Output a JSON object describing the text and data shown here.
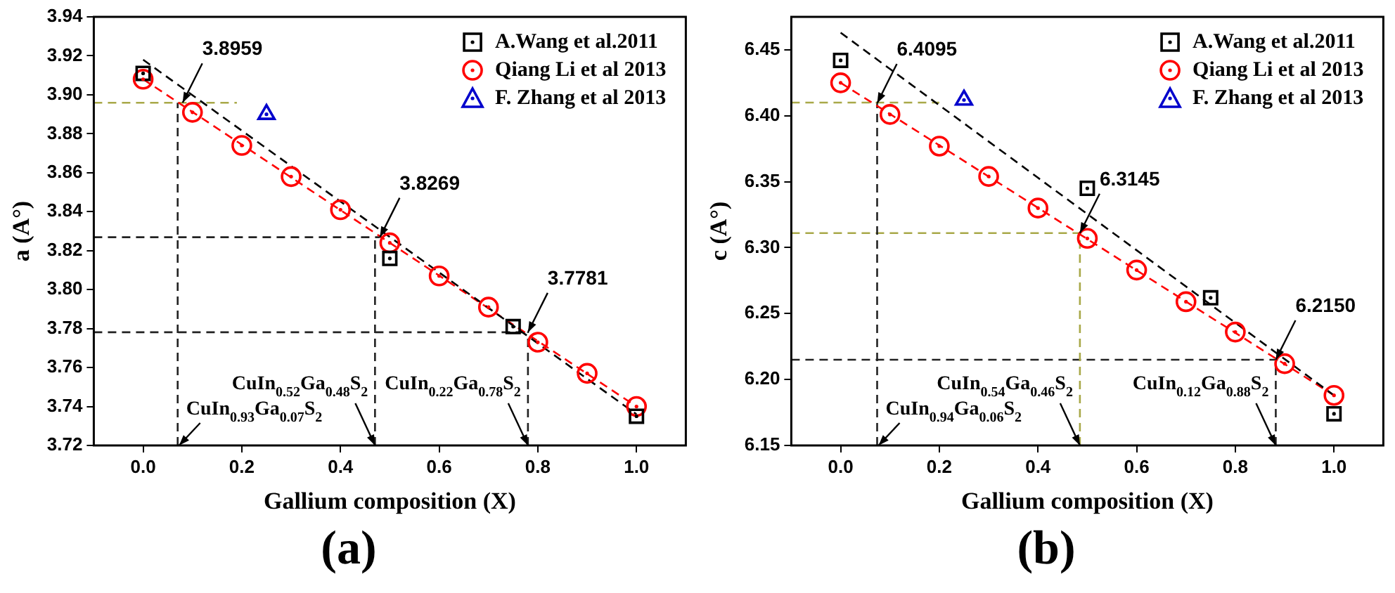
{
  "chart_data": [
    {
      "type": "scatter",
      "xlabel": "Gallium composition (X)",
      "ylabel": "a (A°)",
      "xlim": [
        -0.1,
        1.1
      ],
      "ylim": [
        3.72,
        3.94
      ],
      "xticks": [
        {
          "value": 0,
          "label": "0.0"
        },
        {
          "value": 0.2,
          "label": "0.2"
        },
        {
          "value": 0.4,
          "label": "0.4"
        },
        {
          "value": 0.6,
          "label": "0.6"
        },
        {
          "value": 0.8,
          "label": "0.8"
        },
        {
          "value": 1,
          "label": "1.0"
        }
      ],
      "yticks": [
        {
          "value": 3.72,
          "label": "3.72"
        },
        {
          "value": 3.74,
          "label": "3.74"
        },
        {
          "value": 3.76,
          "label": "3.76"
        },
        {
          "value": 3.78,
          "label": "3.78"
        },
        {
          "value": 3.8,
          "label": "3.80"
        },
        {
          "value": 3.82,
          "label": "3.82"
        },
        {
          "value": 3.84,
          "label": "3.84"
        },
        {
          "value": 3.86,
          "label": "3.86"
        },
        {
          "value": 3.88,
          "label": "3.88"
        },
        {
          "value": 3.9,
          "label": "3.90"
        },
        {
          "value": 3.92,
          "label": "3.92"
        },
        {
          "value": 3.94,
          "label": "3.94"
        }
      ],
      "legend": "top right",
      "grid": false,
      "series": [
        {
          "name": "A.Wang et al.2011",
          "type": "scatter",
          "marker": "square",
          "color": "#000000",
          "x": [
            0,
            0.5,
            0.75,
            1
          ],
          "values": [
            3.911,
            3.816,
            3.781,
            3.735
          ]
        },
        {
          "name": "Qiang Li et al 2013",
          "type": "scatter",
          "marker": "circle",
          "color": "#ff0000",
          "x": [
            0,
            0.1,
            0.2,
            0.3,
            0.4,
            0.5,
            0.6,
            0.7,
            0.8,
            0.9,
            1
          ],
          "values": [
            3.908,
            3.891,
            3.874,
            3.858,
            3.841,
            3.824,
            3.807,
            3.791,
            3.773,
            3.757,
            3.74
          ]
        },
        {
          "name": "F. Zhang et al 2013",
          "type": "scatter",
          "marker": "triangle",
          "color": "#0000cc",
          "x": [
            0.25
          ],
          "values": [
            3.89
          ]
        },
        {
          "type": "line",
          "line_style": "dashed",
          "color": "#000000",
          "x": [
            0,
            1
          ],
          "values": [
            3.918,
            3.736
          ]
        },
        {
          "type": "line",
          "line_style": "dashed",
          "color": "#ff0000",
          "x": [
            0,
            1
          ],
          "values": [
            3.908,
            3.74
          ]
        },
        {
          "type": "line",
          "line_style": "dashed",
          "color": "#a8a848",
          "x": [
            -0.1,
            0.19
          ],
          "values": [
            3.8959,
            3.8959
          ]
        },
        {
          "type": "line",
          "line_style": "dashed",
          "color": "#222222",
          "x": [
            0.07,
            0.07
          ],
          "values": [
            3.72,
            3.8959
          ]
        },
        {
          "type": "line",
          "line_style": "dashed",
          "color": "#222222",
          "x": [
            -0.1,
            0.48
          ],
          "values": [
            3.8269,
            3.8269
          ]
        },
        {
          "type": "line",
          "line_style": "dashed",
          "color": "#222222",
          "x": [
            0.47,
            0.47
          ],
          "values": [
            3.72,
            3.8269
          ]
        },
        {
          "type": "line",
          "line_style": "dashed",
          "color": "#222222",
          "x": [
            -0.1,
            0.78
          ],
          "values": [
            3.7781,
            3.7781
          ]
        },
        {
          "type": "line",
          "line_style": "dashed",
          "color": "#222222",
          "x": [
            0.78,
            0.78
          ],
          "values": [
            3.72,
            3.7781
          ]
        }
      ],
      "annotations": [
        {
          "text": "3.8959",
          "x": 0.08,
          "y": 3.8959
        },
        {
          "text": "3.8269",
          "x": 0.48,
          "y": 3.8269
        },
        {
          "text": "3.7781",
          "x": 0.78,
          "y": 3.7781
        },
        {
          "text": "CuIn$_{0.93}$Ga$_{0.07}$S$_{2}$",
          "x": 0.07,
          "y": 3.72
        },
        {
          "text": "CuIn$_{0.52}$Ga$_{0.48}$S$_{2}$",
          "x": 0.47,
          "y": 3.72
        },
        {
          "text": "CuIn$_{0.22}$Ga$_{0.78}$S$_{2}$",
          "x": 0.78,
          "y": 3.72
        },
        "(a)"
      ]
    },
    {
      "type": "scatter",
      "xlabel": "Gallium composition (X)",
      "ylabel": "c (A°)",
      "xlim": [
        -0.1,
        1.1
      ],
      "ylim": [
        6.15,
        6.475
      ],
      "xticks": [
        {
          "value": 0,
          "label": "0.0"
        },
        {
          "value": 0.2,
          "label": "0.2"
        },
        {
          "value": 0.4,
          "label": "0.4"
        },
        {
          "value": 0.6,
          "label": "0.6"
        },
        {
          "value": 0.8,
          "label": "0.8"
        },
        {
          "value": 1,
          "label": "1.0"
        }
      ],
      "yticks": [
        {
          "value": 6.15,
          "label": "6.15"
        },
        {
          "value": 6.2,
          "label": "6.20"
        },
        {
          "value": 6.25,
          "label": "6.25"
        },
        {
          "value": 6.3,
          "label": "6.30"
        },
        {
          "value": 6.35,
          "label": "6.35"
        },
        {
          "value": 6.4,
          "label": "6.40"
        },
        {
          "value": 6.45,
          "label": "6.45"
        }
      ],
      "legend": "top right",
      "grid": false,
      "series": [
        {
          "name": "A.Wang et al.2011",
          "type": "scatter",
          "marker": "square",
          "color": "#000000",
          "x": [
            0,
            0.5,
            0.75,
            1
          ],
          "values": [
            6.442,
            6.345,
            6.262,
            6.174
          ]
        },
        {
          "name": "Qiang Li et al 2013",
          "type": "scatter",
          "marker": "circle",
          "color": "#ff0000",
          "x": [
            0,
            0.1,
            0.2,
            0.3,
            0.4,
            0.5,
            0.6,
            0.7,
            0.8,
            0.9,
            1
          ],
          "values": [
            6.425,
            6.401,
            6.377,
            6.354,
            6.33,
            6.307,
            6.283,
            6.259,
            6.236,
            6.212,
            6.188
          ]
        },
        {
          "name": "F. Zhang et al 2013",
          "type": "scatter",
          "marker": "triangle",
          "color": "#0000cc",
          "x": [
            0.25
          ],
          "values": [
            6.412
          ]
        },
        {
          "type": "line",
          "line_style": "dashed",
          "color": "#000000",
          "x": [
            0,
            1
          ],
          "values": [
            6.463,
            6.188
          ]
        },
        {
          "type": "line",
          "line_style": "dashed",
          "color": "#ff0000",
          "x": [
            0,
            1
          ],
          "values": [
            6.425,
            6.188
          ]
        },
        {
          "type": "line",
          "line_style": "dashed",
          "color": "#a8a848",
          "x": [
            -0.1,
            0.2
          ],
          "values": [
            6.41,
            6.41
          ]
        },
        {
          "type": "line",
          "line_style": "dashed",
          "color": "#222222",
          "x": [
            0.074,
            0.074
          ],
          "values": [
            6.15,
            6.41
          ]
        },
        {
          "type": "line",
          "line_style": "dashed",
          "color": "#a8a848",
          "x": [
            -0.1,
            0.49
          ],
          "values": [
            6.311,
            6.311
          ]
        },
        {
          "type": "line",
          "line_style": "dashed",
          "color": "#a8a848",
          "x": [
            0.485,
            0.485
          ],
          "values": [
            6.15,
            6.311
          ]
        },
        {
          "type": "line",
          "line_style": "dashed",
          "color": "#222222",
          "x": [
            -0.1,
            0.89
          ],
          "values": [
            6.215,
            6.215
          ]
        },
        {
          "type": "line",
          "line_style": "dashed",
          "color": "#222222",
          "x": [
            0.882,
            0.882
          ],
          "values": [
            6.15,
            6.215
          ]
        }
      ],
      "annotations": [
        {
          "text": "6.4095",
          "x": 0.074,
          "y": 6.4095
        },
        {
          "text": "6.3145",
          "x": 0.485,
          "y": 6.311
        },
        {
          "text": "6.2150",
          "x": 0.882,
          "y": 6.215
        },
        {
          "text": "CuIn$_{0.94}$Ga$_{0.06}$S$_{2}$",
          "x": 0.074,
          "y": 6.15
        },
        {
          "text": "CuIn$_{0.54}$Ga$_{0.46}$S$_{2}$",
          "x": 0.485,
          "y": 6.15
        },
        {
          "text": "CuIn$_{0.12}$Ga$_{0.88}$S$_{2}$",
          "x": 0.882,
          "y": 6.15
        },
        "(b)"
      ]
    }
  ]
}
